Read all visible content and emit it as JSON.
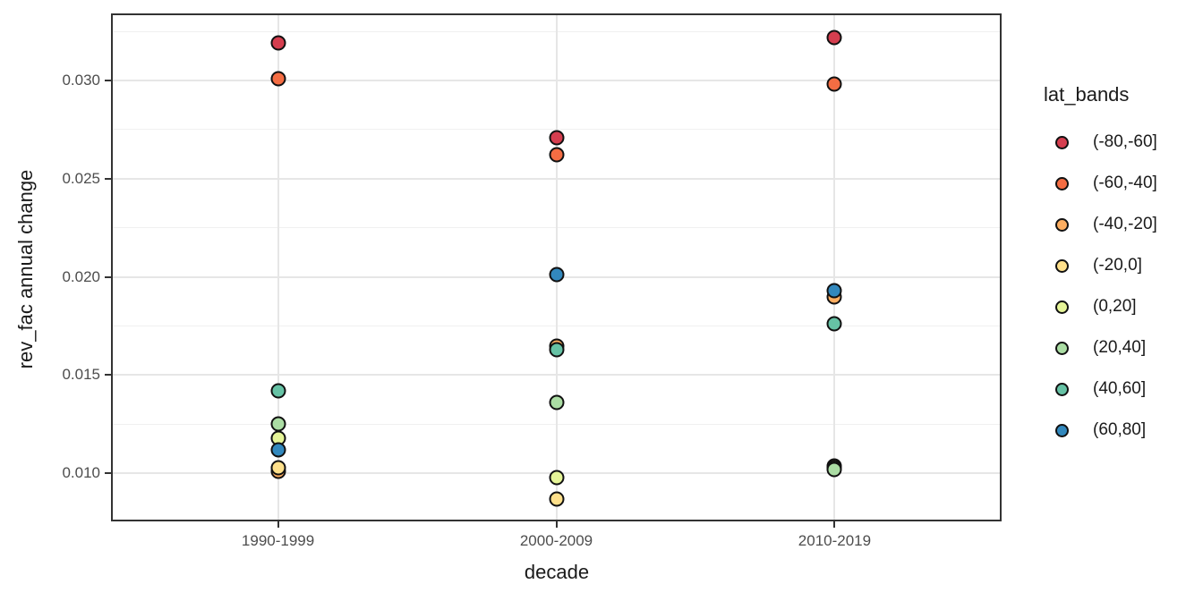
{
  "colors": {
    "background": "#ffffff",
    "panel_border": "#333333",
    "grid_major": "#e6e6e6",
    "grid_minor": "#f0f0f0",
    "tick_text": "#4d4d4d",
    "title_text": "#1a1a1a",
    "point_outline": "#111111"
  },
  "chart_data": {
    "type": "scatter",
    "title": "",
    "xlabel": "decade",
    "ylabel": "rev_fac annual change",
    "legend_title": "lat_bands",
    "legend_position": "right",
    "grid": "on",
    "categories": [
      "1990-1999",
      "2000-2009",
      "2010-2019"
    ],
    "y_ticks": [
      {
        "label": "0.010",
        "value": 0.01
      },
      {
        "label": "0.015",
        "value": 0.015
      },
      {
        "label": "0.020",
        "value": 0.02
      },
      {
        "label": "0.025",
        "value": 0.025
      },
      {
        "label": "0.030",
        "value": 0.03
      }
    ],
    "ylim": [
      0.0076,
      0.0334
    ],
    "series": [
      {
        "name": "(-80,-60]",
        "color": "#D53E4F",
        "values": [
          0.0319,
          0.0271,
          0.0322
        ]
      },
      {
        "name": "(-60,-40]",
        "color": "#F46D43",
        "values": [
          0.0301,
          0.0262,
          0.0298
        ]
      },
      {
        "name": "(-40,-20]",
        "color": "#FDAE61",
        "values": [
          0.0101,
          0.0165,
          0.019
        ]
      },
      {
        "name": "(-20,0]",
        "color": "#FEE08B",
        "values": [
          0.0103,
          0.0087,
          0.0104
        ]
      },
      {
        "name": "(0,20]",
        "color": "#E6F598",
        "values": [
          0.0118,
          0.0098,
          0.0103
        ]
      },
      {
        "name": "(20,40]",
        "color": "#ABDDA4",
        "values": [
          0.0125,
          0.0136,
          0.0102
        ]
      },
      {
        "name": "(40,60]",
        "color": "#66C2A5",
        "values": [
          0.0142,
          0.0163,
          0.0176
        ]
      },
      {
        "name": "(60,80]",
        "color": "#3288BD",
        "values": [
          0.0112,
          0.0201,
          0.0193
        ]
      }
    ]
  }
}
